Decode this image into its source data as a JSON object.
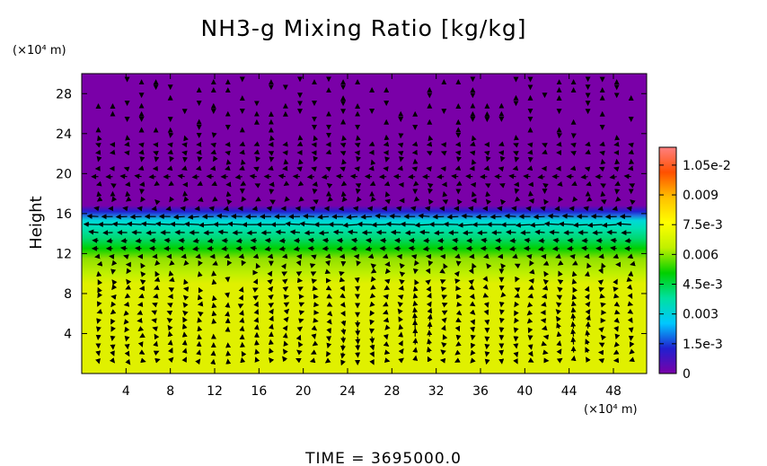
{
  "chart_data": {
    "type": "heatmap",
    "title": "NH3-g Mixing Ratio [kg/kg]",
    "ylabel": "Height",
    "y_unit": "(×10⁴ m)",
    "x_unit": "(×10⁴ m)",
    "xlim": [
      0,
      51
    ],
    "ylim": [
      0,
      30
    ],
    "x_ticks": [
      "4",
      "8",
      "12",
      "16",
      "20",
      "24",
      "28",
      "32",
      "36",
      "40",
      "44",
      "48"
    ],
    "y_ticks": [
      "4",
      "8",
      "12",
      "16",
      "20",
      "24",
      "28"
    ],
    "x_tick_values": [
      4,
      8,
      12,
      16,
      20,
      24,
      28,
      32,
      36,
      40,
      44,
      48
    ],
    "y_tick_values": [
      4,
      8,
      12,
      16,
      20,
      24,
      28
    ],
    "colorbar": {
      "labels": [
        "0",
        "1.5e-3",
        "0.003",
        "4.5e-3",
        "0.006",
        "7.5e-3",
        "0.009",
        "1.05e-2"
      ],
      "values": [
        0,
        0.0015,
        0.003,
        0.0045,
        0.006,
        0.0075,
        0.009,
        0.0105
      ],
      "max": 0.0114,
      "colors": [
        "#7a00a8",
        "#2020d0",
        "#00c8ff",
        "#00e0a0",
        "#00d000",
        "#c0f000",
        "#ffff00",
        "#ffc000",
        "#ff5000",
        "#ff8080"
      ]
    },
    "vertical_profile": [
      {
        "height": 0,
        "value": 0.008,
        "color": "#e0f000"
      },
      {
        "height": 9,
        "value": 0.008,
        "color": "#e0f000"
      },
      {
        "height": 10,
        "value": 0.0074,
        "color": "#c0f000"
      },
      {
        "height": 11.5,
        "value": 0.0066,
        "color": "#90e000"
      },
      {
        "height": 12.5,
        "value": 0.0058,
        "color": "#00d000"
      },
      {
        "height": 13.5,
        "value": 0.005,
        "color": "#00d870"
      },
      {
        "height": 14.5,
        "value": 0.0043,
        "color": "#00e0b0"
      },
      {
        "height": 15.3,
        "value": 0.0036,
        "color": "#00d8d8"
      },
      {
        "height": 15.8,
        "value": 0.002,
        "color": "#2070e0"
      },
      {
        "height": 16.2,
        "value": 0.0008,
        "color": "#2020d0"
      },
      {
        "height": 16.8,
        "value": 0.0,
        "color": "#7a00a8"
      },
      {
        "height": 30,
        "value": 0.0,
        "color": "#7a00a8"
      }
    ],
    "wind_vectors": "quiver field overlaid (circulation cells near x=6, 20, 28, 32, 42, 46; strong westward flow near height 15)"
  },
  "time_label": "TIME  =  3695000.0"
}
